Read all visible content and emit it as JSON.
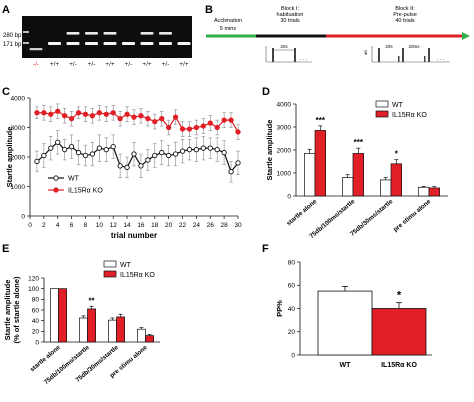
{
  "panels": {
    "A": {
      "letter": "A",
      "ladder_labels": [
        "280 bp",
        "171 bp"
      ],
      "lane_labels": [
        "-/-",
        "+/+",
        "+/-",
        "+/-",
        "+/+",
        "+/-",
        "+/+",
        "+/-",
        "+/+"
      ],
      "lane_label_colors": [
        "#e01f26",
        "#111111",
        "#111111",
        "#111111",
        "#111111",
        "#111111",
        "#111111",
        "#111111",
        "#111111"
      ],
      "gel_bands": [
        {
          "lane": 0,
          "upper": false,
          "lower": false,
          "extra_low": true
        },
        {
          "lane": 1,
          "upper": false,
          "lower": true
        },
        {
          "lane": 2,
          "upper": true,
          "lower": true
        },
        {
          "lane": 3,
          "upper": true,
          "lower": true
        },
        {
          "lane": 4,
          "upper": true,
          "lower": true
        },
        {
          "lane": 5,
          "upper": false,
          "lower": true
        },
        {
          "lane": 6,
          "upper": true,
          "lower": true
        },
        {
          "lane": 7,
          "upper": true,
          "lower": true
        },
        {
          "lane": 8,
          "upper": false,
          "lower": true
        }
      ]
    },
    "B": {
      "letter": "B",
      "segments": [
        {
          "title": "Acclimation",
          "subtitle": "5 mins",
          "color": "#2fb04a"
        },
        {
          "title": "Block I:",
          "subtitle": "habituation",
          "detail": "30 trials",
          "color": "#111111"
        },
        {
          "title": "Block II:",
          "subtitle": "Pre-pulse",
          "detail": "40 trials",
          "color": "#e01f26"
        }
      ],
      "schematic_labels": {
        "block1_interval": "20s",
        "block2_interval_a": "20s",
        "block2_interval_b": "20ms",
        "db_label": "dB",
        "db_values": [
          "120",
          "75",
          "65"
        ]
      }
    },
    "C": {
      "letter": "C"
    },
    "D": {
      "letter": "D"
    },
    "E": {
      "letter": "E"
    },
    "F": {
      "letter": "F"
    }
  },
  "colors": {
    "wt": "#ffffff",
    "ko": "#e01f26",
    "axis": "#111111",
    "acclimation": "#2fb04a"
  },
  "chart_data": [
    {
      "panel": "C",
      "type": "line",
      "xlabel": "trial number",
      "ylabel": "Startle amplitude",
      "xlim": [
        0,
        30
      ],
      "ylim": [
        0,
        4000
      ],
      "xticks": [
        0,
        2,
        4,
        6,
        8,
        10,
        12,
        14,
        16,
        18,
        20,
        22,
        24,
        26,
        28,
        30
      ],
      "yticks": [
        0,
        1000,
        2000,
        3000,
        4000
      ],
      "x": [
        1,
        2,
        3,
        4,
        5,
        6,
        7,
        8,
        9,
        10,
        11,
        12,
        13,
        14,
        15,
        16,
        17,
        18,
        19,
        20,
        21,
        22,
        23,
        24,
        25,
        26,
        27,
        28,
        29,
        30
      ],
      "legend": [
        "WT",
        "IL15Rα KO"
      ],
      "legend_position": "left",
      "series": [
        {
          "name": "WT",
          "values": [
            1850,
            2050,
            2300,
            2500,
            2250,
            2350,
            2150,
            2050,
            2100,
            2300,
            2250,
            2350,
            1700,
            1650,
            2100,
            1700,
            1900,
            2050,
            2150,
            2050,
            2100,
            2200,
            2250,
            2250,
            2300,
            2300,
            2250,
            2150,
            1500,
            1800
          ],
          "errors": [
            350,
            400,
            400,
            400,
            350,
            400,
            400,
            350,
            400,
            450,
            400,
            400,
            400,
            350,
            400,
            400,
            350,
            400,
            400,
            350,
            400,
            400,
            350,
            400,
            400,
            350,
            400,
            400,
            350,
            400
          ]
        },
        {
          "name": "IL15Rα KO",
          "values": [
            3500,
            3500,
            3450,
            3550,
            3400,
            3300,
            3500,
            3450,
            3400,
            3500,
            3450,
            3500,
            3300,
            3450,
            3350,
            3400,
            3300,
            3200,
            3300,
            3000,
            3350,
            2950,
            2950,
            3000,
            3050,
            3150,
            3000,
            3250,
            3250,
            2850
          ],
          "errors": [
            200,
            250,
            250,
            250,
            250,
            250,
            200,
            250,
            250,
            250,
            250,
            250,
            250,
            250,
            250,
            250,
            250,
            250,
            250,
            250,
            250,
            250,
            250,
            250,
            250,
            250,
            250,
            250,
            250,
            250
          ]
        }
      ]
    },
    {
      "panel": "D",
      "type": "bar",
      "ylabel": "Startle amplitude",
      "ylim": [
        0,
        4000
      ],
      "yticks": [
        0,
        1000,
        2000,
        3000,
        4000
      ],
      "categories": [
        "startle alone",
        "75db/100ms/startle",
        "75db/30ms/startle",
        "pre stimu alone"
      ],
      "legend": [
        "WT",
        "IL15Rα KO"
      ],
      "legend_position": "top-right",
      "series": [
        {
          "name": "WT",
          "values": [
            1850,
            800,
            700,
            380
          ],
          "errors": [
            180,
            130,
            100,
            40
          ]
        },
        {
          "name": "IL15Rα KO",
          "values": [
            2850,
            1850,
            1400,
            350
          ],
          "errors": [
            200,
            230,
            180,
            60
          ]
        }
      ],
      "significance": [
        "***",
        "***",
        "*",
        ""
      ]
    },
    {
      "panel": "E",
      "type": "bar",
      "ylabel": "Startle amplitude\n(% of startle alone)",
      "ylim": [
        0,
        120
      ],
      "yticks": [
        0,
        20,
        40,
        60,
        80,
        100,
        120
      ],
      "categories": [
        "startle alone",
        "75db/100ms/startle",
        "75db/30ms/startle",
        "pre stimu alone"
      ],
      "legend": [
        "WT",
        "IL15Rα KO"
      ],
      "legend_position": "top-right",
      "series": [
        {
          "name": "WT",
          "values": [
            100,
            45,
            41,
            24
          ],
          "errors": [
            0,
            4,
            4,
            3
          ]
        },
        {
          "name": "IL15Rα KO",
          "values": [
            100,
            62,
            47,
            12
          ],
          "errors": [
            0,
            5,
            5,
            2
          ]
        }
      ],
      "significance": [
        "",
        "**",
        "",
        ""
      ]
    },
    {
      "panel": "F",
      "type": "bar",
      "ylabel": "PP%",
      "ylim": [
        0,
        80
      ],
      "yticks": [
        0,
        20,
        40,
        60,
        80
      ],
      "categories": [
        "WT",
        "IL15Rα KO"
      ],
      "values": [
        55,
        40
      ],
      "errors": [
        4,
        5
      ],
      "significance": [
        "",
        "*"
      ]
    }
  ]
}
